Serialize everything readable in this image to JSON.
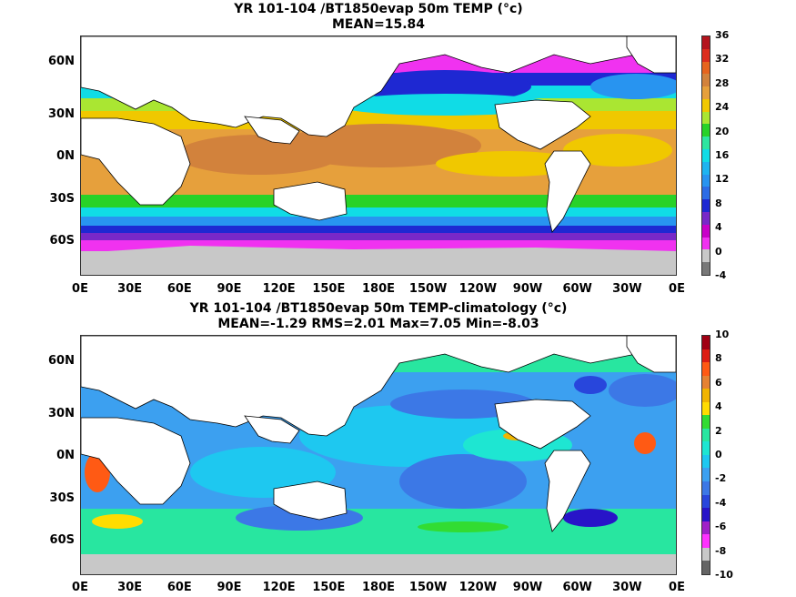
{
  "panels": [
    {
      "id": "top",
      "title_line1": "YR 101-104 /BT1850evap 50m TEMP (°c)",
      "title_line2": "MEAN=15.84",
      "colorbar": {
        "labels": [
          "36",
          "32",
          "28",
          "24",
          "20",
          "16",
          "12",
          "8",
          "4",
          "0",
          "-4"
        ],
        "colors": [
          "#b4141e",
          "#dc2d1e",
          "#e6641e",
          "#d2823c",
          "#e6a03c",
          "#f0c800",
          "#aae632",
          "#28d228",
          "#2ee6a0",
          "#10dce6",
          "#1eb4f0",
          "#2894f0",
          "#2c6ce6",
          "#1e28d2",
          "#7828c8",
          "#c800c8",
          "#f032f0",
          "#c8c8c8",
          "#787878"
        ]
      }
    },
    {
      "id": "bottom",
      "title_line1": "YR 101-104 /BT1850evap 50m TEMP-climatology (°c)",
      "title_line2": "MEAN=-1.29   RMS=2.01   Max=7.05   Min=-8.03",
      "colorbar": {
        "labels": [
          "10",
          "8",
          "6",
          "4",
          "2",
          "0",
          "-2",
          "-4",
          "-6",
          "-8",
          "-10"
        ],
        "colors": [
          "#a00014",
          "#dc1e14",
          "#ff5a14",
          "#e68232",
          "#f0b400",
          "#ffdc00",
          "#32dc32",
          "#28e6a0",
          "#1ee6d2",
          "#1ec8f0",
          "#3ca0f0",
          "#3c78e6",
          "#2846dc",
          "#2814c8",
          "#a020c8",
          "#ff32ff",
          "#c8c8c8",
          "#646464"
        ]
      }
    }
  ],
  "lon_ticks": [
    "0E",
    "30E",
    "60E",
    "90E",
    "120E",
    "150E",
    "180E",
    "150W",
    "120W",
    "90W",
    "60W",
    "30W",
    "0E"
  ],
  "lat_ticks": [
    "60N",
    "30N",
    "0N",
    "30S",
    "60S"
  ]
}
